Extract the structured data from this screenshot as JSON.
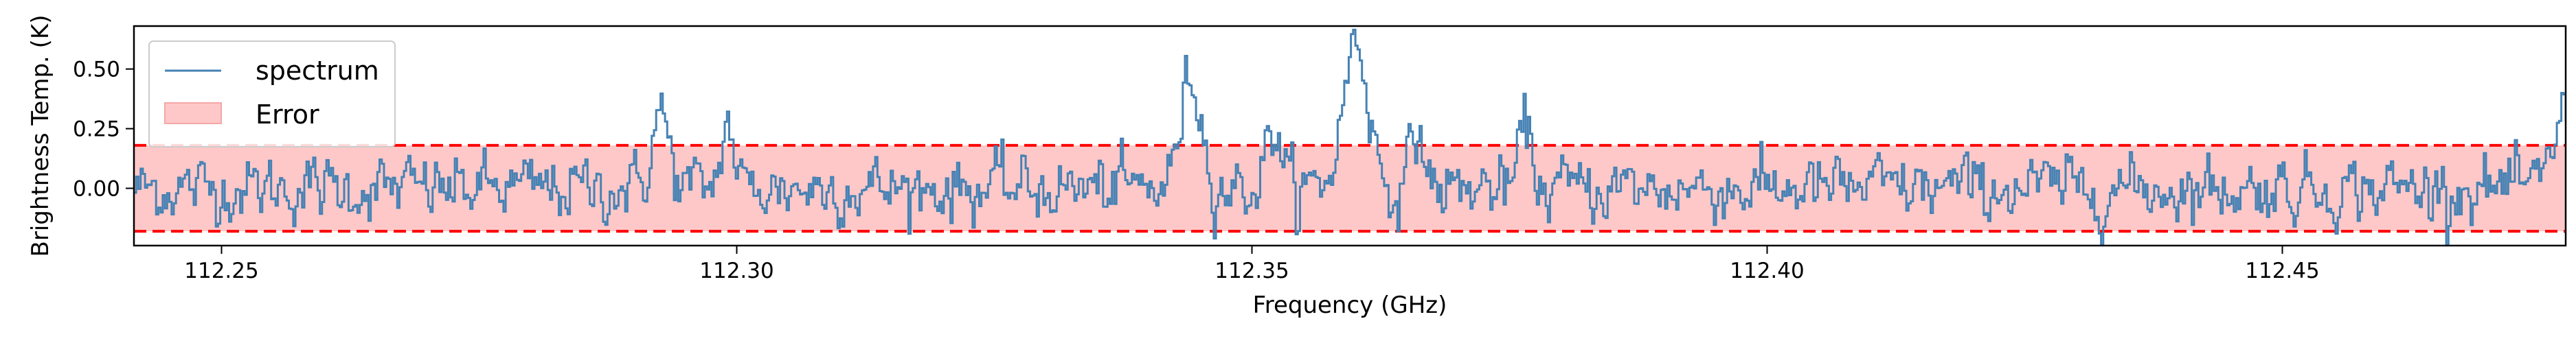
{
  "chart_data": {
    "type": "line",
    "title": "",
    "xlabel": "Frequency (GHz)",
    "ylabel": "Brightness Temp. (K)",
    "xlim": [
      112.2415,
      112.4775
    ],
    "ylim": [
      -0.24,
      0.68
    ],
    "x_ticks": [
      112.25,
      112.3,
      112.35,
      112.4,
      112.45
    ],
    "x_tick_labels": [
      "112.25",
      "112.30",
      "112.35",
      "112.40",
      "112.45"
    ],
    "y_ticks": [
      0.0,
      0.25,
      0.5
    ],
    "y_tick_labels": [
      "0.00",
      "0.25",
      "0.50"
    ],
    "grid": false,
    "legend_position": "upper left",
    "legend": [
      {
        "label": "spectrum",
        "kind": "line"
      },
      {
        "label": "Error",
        "kind": "patch"
      }
    ],
    "error_band": {
      "lower": -0.18,
      "upper": 0.18
    },
    "series": [
      {
        "name": "spectrum",
        "baseline_sigma": 0.06,
        "x_start": 112.2415,
        "x_end": 112.4775,
        "channels": 1100,
        "features": [
          {
            "center": 112.2925,
            "peak": 0.32,
            "width": 0.0008
          },
          {
            "center": 112.299,
            "peak": 0.27,
            "width": 0.0006
          },
          {
            "center": 112.344,
            "peak": 0.47,
            "width": 0.001
          },
          {
            "center": 112.352,
            "peak": 0.26,
            "width": 0.0007
          },
          {
            "center": 112.36,
            "peak": 0.62,
            "width": 0.0012
          },
          {
            "center": 112.366,
            "peak": 0.25,
            "width": 0.0006
          },
          {
            "center": 112.3765,
            "peak": 0.26,
            "width": 0.0006
          },
          {
            "center": 112.477,
            "peak": 0.33,
            "width": 0.0008
          }
        ]
      }
    ],
    "colors": {
      "spectrum": "#4682b4",
      "error_fill": "#ffc8c8",
      "error_line": "#ff0000"
    }
  }
}
